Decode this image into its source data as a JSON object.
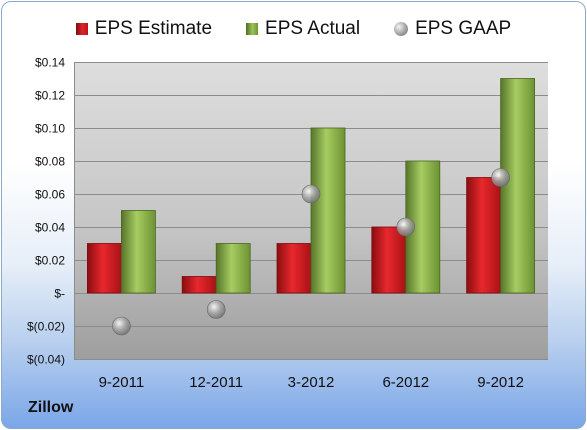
{
  "chart_data": {
    "type": "bar",
    "categories": [
      "9-2011",
      "12-2011",
      "3-2012",
      "6-2012",
      "9-2012"
    ],
    "series": [
      {
        "name": "EPS Estimate",
        "kind": "bar",
        "color": "#d0181e",
        "values": [
          0.03,
          0.01,
          0.03,
          0.04,
          0.07
        ]
      },
      {
        "name": "EPS Actual",
        "kind": "bar",
        "color": "#8cb44a",
        "values": [
          0.05,
          0.03,
          0.1,
          0.08,
          0.13
        ]
      },
      {
        "name": "EPS GAAP",
        "kind": "marker",
        "color": "#9a9a9a",
        "values": [
          -0.02,
          -0.01,
          0.06,
          0.04,
          0.07
        ]
      }
    ],
    "ylim": [
      -0.04,
      0.14
    ],
    "yticks": [
      0.14,
      0.12,
      0.1,
      0.08,
      0.06,
      0.04,
      0.02,
      0,
      -0.02,
      -0.04
    ],
    "ytick_labels": [
      "$0.14",
      "$0.12",
      "$0.10",
      "$0.08",
      "$0.06",
      "$0.04",
      "$0.02",
      "$-",
      "$(0.02)",
      "$(0.04)"
    ],
    "legend_position": "top",
    "grid": true
  },
  "legend": {
    "estimate": "EPS Estimate",
    "actual": "EPS Actual",
    "gaap": "EPS GAAP"
  },
  "company": "Zillow"
}
